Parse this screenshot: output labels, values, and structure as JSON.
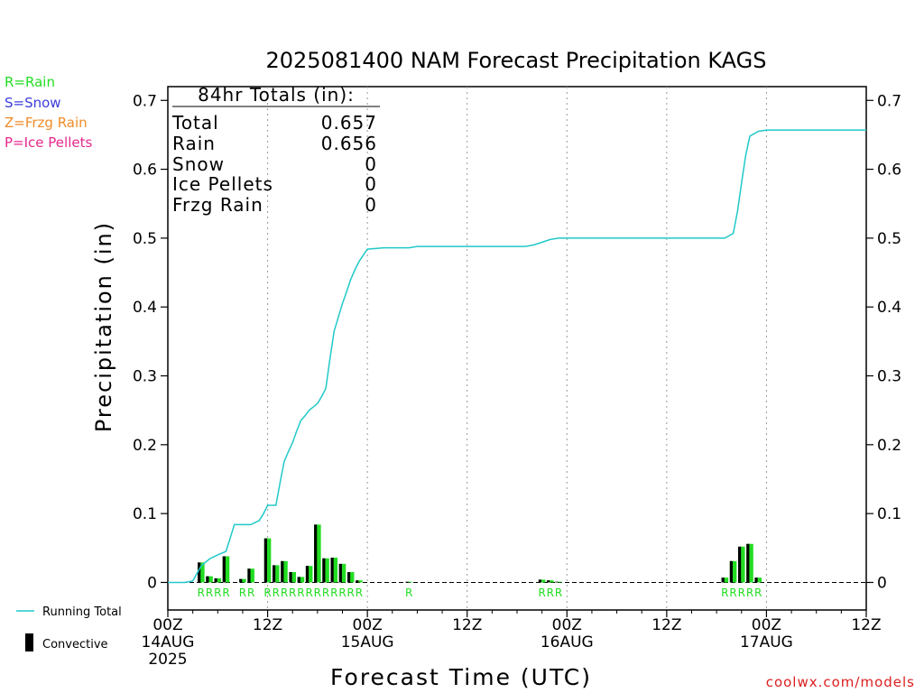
{
  "title": "2025081400 NAM Forecast Precipitation KAGS",
  "ptype_legend": [
    {
      "label": "R=Rain",
      "color": "#22dd22"
    },
    {
      "label": "S=Snow",
      "color": "#3c3cdc"
    },
    {
      "label": "Z=Frzg Rain",
      "color": "#f08c28"
    },
    {
      "label": "P=Ice Pellets",
      "color": "#e6288c"
    }
  ],
  "totals": {
    "header": "84hr Totals (in):",
    "rows": [
      {
        "label": "Total",
        "value": "0.657"
      },
      {
        "label": "Rain",
        "value": "0.656"
      },
      {
        "label": "Snow",
        "value": "0"
      },
      {
        "label": "Ice Pellets",
        "value": "0"
      },
      {
        "label": "Frzg Rain",
        "value": "0"
      }
    ]
  },
  "series_legend": {
    "running_total": "Running Total",
    "convective": "Convective"
  },
  "credit": "coolwx.com/models",
  "colors": {
    "running_total": "#22c8c8",
    "bars": "#22dd22",
    "convective": "#000000",
    "ptype_rain": "#22dd22"
  },
  "chart_data": {
    "type": "bar",
    "ylabel": "Precipitation (in)",
    "xlabel": "Forecast Time (UTC)",
    "xlim_hours": [
      0,
      84
    ],
    "ylim": [
      -0.04,
      0.72
    ],
    "yticks": [
      "0",
      "0.1",
      "0.2",
      "0.3",
      "0.4",
      "0.5",
      "0.6",
      "0.7"
    ],
    "ytick_values": [
      0,
      0.1,
      0.2,
      0.3,
      0.4,
      0.5,
      0.6,
      0.7
    ],
    "xticks": [
      {
        "hour": 0,
        "lines": [
          "00Z",
          "14AUG",
          "2025"
        ]
      },
      {
        "hour": 12,
        "lines": [
          "12Z"
        ]
      },
      {
        "hour": 24,
        "lines": [
          "00Z",
          "15AUG"
        ]
      },
      {
        "hour": 36,
        "lines": [
          "12Z"
        ]
      },
      {
        "hour": 48,
        "lines": [
          "00Z",
          "16AUG"
        ]
      },
      {
        "hour": 60,
        "lines": [
          "12Z"
        ]
      },
      {
        "hour": 72,
        "lines": [
          "00Z",
          "17AUG"
        ]
      },
      {
        "hour": 84,
        "lines": [
          "12Z"
        ]
      }
    ],
    "grid_hours": [
      12,
      24,
      36,
      48,
      60,
      72
    ],
    "bars": {
      "hours": [
        4,
        5,
        6,
        7,
        9,
        10,
        12,
        13,
        14,
        15,
        16,
        17,
        18,
        19,
        20,
        21,
        22,
        23,
        29,
        45,
        46,
        47,
        67,
        68,
        69,
        70,
        71
      ],
      "total": [
        0.029,
        0.009,
        0.006,
        0.038,
        0.005,
        0.02,
        0.064,
        0.025,
        0.031,
        0.015,
        0.008,
        0.024,
        0.084,
        0.035,
        0.036,
        0.027,
        0.015,
        0.003,
        0.001,
        0.004,
        0.003,
        0.001,
        0.007,
        0.031,
        0.052,
        0.056,
        0.007
      ],
      "convective": [
        0.029,
        0.009,
        0.006,
        0.038,
        0.005,
        0.02,
        0.064,
        0.025,
        0.031,
        0.015,
        0.008,
        0.024,
        0.084,
        0.035,
        0.036,
        0.027,
        0.015,
        0.003,
        0.001,
        0.004,
        0.003,
        0.001,
        0.007,
        0.031,
        0.052,
        0.056,
        0.007
      ]
    },
    "ptype_markers": {
      "hours": [
        4,
        5,
        6,
        7,
        9,
        10,
        12,
        13,
        14,
        15,
        16,
        17,
        18,
        19,
        20,
        21,
        22,
        23,
        29,
        45,
        46,
        47,
        67,
        68,
        69,
        70,
        71
      ],
      "letters": [
        "R",
        "R",
        "R",
        "R",
        "R",
        "R",
        "R",
        "R",
        "R",
        "R",
        "R",
        "R",
        "R",
        "R",
        "R",
        "R",
        "R",
        "R",
        "R",
        "R",
        "R",
        "R",
        "R",
        "R",
        "R",
        "R",
        "R"
      ]
    },
    "running_total": {
      "hours": [
        0,
        2,
        3,
        4,
        5,
        6,
        7,
        8,
        9,
        10,
        10.5,
        11,
        11.5,
        12,
        12.5,
        13,
        13.5,
        14,
        14.5,
        15,
        15.5,
        16,
        16.5,
        17,
        17.5,
        18,
        18.5,
        19,
        19.5,
        20,
        20.5,
        21,
        21.5,
        22,
        22.5,
        23,
        24,
        26,
        28,
        29,
        30,
        33,
        36,
        39,
        42,
        43,
        44,
        45,
        46,
        47,
        48,
        51,
        54,
        57,
        60,
        63,
        66,
        66.5,
        67,
        68,
        68.5,
        69,
        69.5,
        70,
        71,
        72,
        75,
        78,
        81,
        84
      ],
      "values": [
        0,
        0,
        0.002,
        0.024,
        0.034,
        0.04,
        0.045,
        0.084,
        0.084,
        0.084,
        0.087,
        0.09,
        0.1,
        0.112,
        0.112,
        0.112,
        0.145,
        0.176,
        0.19,
        0.203,
        0.22,
        0.235,
        0.242,
        0.25,
        0.255,
        0.26,
        0.27,
        0.282,
        0.325,
        0.365,
        0.385,
        0.405,
        0.422,
        0.44,
        0.454,
        0.466,
        0.484,
        0.486,
        0.486,
        0.486,
        0.488,
        0.488,
        0.488,
        0.488,
        0.488,
        0.488,
        0.49,
        0.494,
        0.498,
        0.5,
        0.5,
        0.5,
        0.5,
        0.5,
        0.5,
        0.5,
        0.5,
        0.5,
        0.5,
        0.507,
        0.538,
        0.58,
        0.62,
        0.648,
        0.655,
        0.657,
        0.657,
        0.657,
        0.657,
        0.657
      ]
    }
  }
}
